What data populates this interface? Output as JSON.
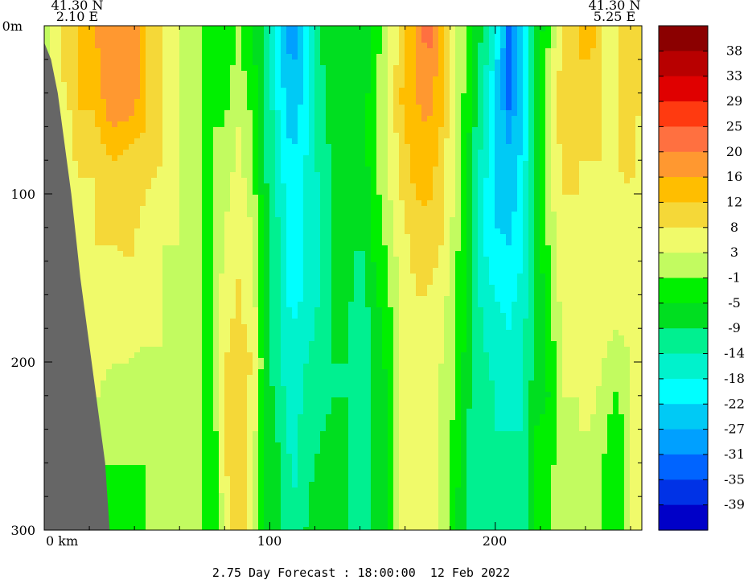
{
  "chart_data": {
    "type": "heatmap",
    "title": "",
    "corner_left": {
      "lat": "41.30 N",
      "lon": "2.10 E"
    },
    "corner_right": {
      "lat": "41.30 N",
      "lon": "5.25 E"
    },
    "footer": "2.75 Day Forecast : 18:00:00  12 Feb 2022",
    "x_axis": {
      "unit": "km",
      "range": [
        0,
        265
      ],
      "ticks": [
        {
          "value": 0,
          "label": "0 km"
        },
        {
          "value": 100,
          "label": "100"
        },
        {
          "value": 200,
          "label": "200"
        }
      ]
    },
    "y_axis": {
      "unit": "m",
      "range": [
        0,
        300
      ],
      "inverted": true,
      "ticks": [
        {
          "value": 0,
          "label": "0m"
        },
        {
          "value": 100,
          "label": "100"
        },
        {
          "value": 200,
          "label": "200"
        },
        {
          "value": 300,
          "label": "300"
        }
      ]
    },
    "colorbar": {
      "labels": [
        "38",
        "33",
        "29",
        "25",
        "20",
        "16",
        "12",
        "8",
        "3",
        "-1",
        "-5",
        "-9",
        "-14",
        "-18",
        "-22",
        "-27",
        "-31",
        "-35",
        "-39"
      ],
      "colors": [
        "#8b0000",
        "#b80000",
        "#e00000",
        "#ff3a10",
        "#ff7040",
        "#ff9830",
        "#ffbe00",
        "#f5d838",
        "#f0fa6a",
        "#c2fb60",
        "#00f000",
        "#00de20",
        "#00f090",
        "#00f2cc",
        "#00ffff",
        "#00caf5",
        "#00a0ff",
        "#0064ff",
        "#0032e6",
        "#0000c8"
      ]
    },
    "columns": [
      {
        "x": 0,
        "profile": [
          [
            0,
            -1
          ],
          [
            300,
            -1
          ]
        ]
      },
      {
        "x": 8,
        "profile": [
          [
            0,
            8
          ],
          [
            30,
            8
          ],
          [
            60,
            3
          ],
          [
            100,
            3
          ],
          [
            300,
            3
          ]
        ]
      },
      {
        "x": 15,
        "profile": [
          [
            0,
            12
          ],
          [
            50,
            12
          ],
          [
            90,
            8
          ],
          [
            300,
            3
          ]
        ]
      },
      {
        "x": 22,
        "profile": [
          [
            0,
            16
          ],
          [
            50,
            12
          ],
          [
            90,
            8
          ],
          [
            150,
            8
          ],
          [
            230,
            3
          ],
          [
            260,
            -1
          ],
          [
            300,
            -1
          ]
        ]
      },
      {
        "x": 30,
        "profile": [
          [
            0,
            20
          ],
          [
            40,
            20
          ],
          [
            60,
            16
          ],
          [
            80,
            12
          ],
          [
            130,
            8
          ],
          [
            200,
            3
          ],
          [
            250,
            -1
          ],
          [
            300,
            -1
          ]
        ]
      },
      {
        "x": 38,
        "profile": [
          [
            0,
            20
          ],
          [
            40,
            20
          ],
          [
            70,
            12
          ],
          [
            140,
            8
          ],
          [
            200,
            3
          ],
          [
            260,
            -1
          ],
          [
            300,
            -1
          ]
        ]
      },
      {
        "x": 45,
        "profile": [
          [
            0,
            12
          ],
          [
            60,
            12
          ],
          [
            100,
            8
          ],
          [
            190,
            3
          ],
          [
            230,
            -1
          ],
          [
            300,
            -1
          ]
        ]
      },
      {
        "x": 52,
        "profile": [
          [
            0,
            8
          ],
          [
            80,
            8
          ],
          [
            130,
            3
          ],
          [
            200,
            3
          ],
          [
            300,
            -1
          ]
        ]
      },
      {
        "x": 60,
        "profile": [
          [
            0,
            3
          ],
          [
            110,
            3
          ],
          [
            250,
            3
          ],
          [
            300,
            -1
          ]
        ]
      },
      {
        "x": 66,
        "profile": [
          [
            0,
            3
          ],
          [
            300,
            3
          ]
        ]
      },
      {
        "x": 70,
        "profile": [
          [
            0,
            -1
          ],
          [
            100,
            -1
          ],
          [
            250,
            -1
          ],
          [
            300,
            -1
          ]
        ]
      },
      {
        "x": 75,
        "profile": [
          [
            0,
            -1
          ],
          [
            40,
            -1
          ],
          [
            120,
            -1
          ],
          [
            300,
            -5
          ]
        ]
      },
      {
        "x": 80,
        "profile": [
          [
            0,
            -5
          ],
          [
            60,
            -1
          ],
          [
            120,
            3
          ],
          [
            200,
            8
          ],
          [
            260,
            8
          ],
          [
            300,
            3
          ]
        ]
      },
      {
        "x": 86,
        "profile": [
          [
            0,
            -1
          ],
          [
            60,
            3
          ],
          [
            150,
            8
          ],
          [
            240,
            12
          ],
          [
            300,
            12
          ]
        ]
      },
      {
        "x": 92,
        "profile": [
          [
            0,
            -5
          ],
          [
            60,
            -1
          ],
          [
            120,
            3
          ],
          [
            200,
            8
          ],
          [
            300,
            3
          ]
        ]
      },
      {
        "x": 98,
        "profile": [
          [
            0,
            -9
          ],
          [
            80,
            -9
          ],
          [
            160,
            -5
          ],
          [
            240,
            -5
          ],
          [
            300,
            -5
          ]
        ]
      },
      {
        "x": 104,
        "profile": [
          [
            0,
            -22
          ],
          [
            60,
            -18
          ],
          [
            120,
            -14
          ],
          [
            200,
            -14
          ],
          [
            250,
            -9
          ],
          [
            300,
            -9
          ]
        ]
      },
      {
        "x": 110,
        "profile": [
          [
            0,
            -31
          ],
          [
            30,
            -27
          ],
          [
            80,
            -22
          ],
          [
            140,
            -22
          ],
          [
            180,
            -18
          ],
          [
            300,
            -14
          ]
        ]
      },
      {
        "x": 116,
        "profile": [
          [
            0,
            -22
          ],
          [
            80,
            -18
          ],
          [
            150,
            -18
          ],
          [
            200,
            -14
          ],
          [
            300,
            -9
          ]
        ]
      },
      {
        "x": 122,
        "profile": [
          [
            0,
            -9
          ],
          [
            100,
            -14
          ],
          [
            160,
            -14
          ],
          [
            250,
            -9
          ],
          [
            300,
            -5
          ]
        ]
      },
      {
        "x": 128,
        "profile": [
          [
            0,
            -5
          ],
          [
            120,
            -9
          ],
          [
            220,
            -9
          ],
          [
            300,
            -5
          ]
        ]
      },
      {
        "x": 134,
        "profile": [
          [
            0,
            -5
          ],
          [
            100,
            -5
          ],
          [
            200,
            -9
          ],
          [
            300,
            -9
          ]
        ]
      },
      {
        "x": 140,
        "profile": [
          [
            0,
            -9
          ],
          [
            120,
            -9
          ],
          [
            200,
            -14
          ],
          [
            300,
            -14
          ]
        ]
      },
      {
        "x": 146,
        "profile": [
          [
            0,
            -5
          ],
          [
            60,
            -1
          ],
          [
            140,
            -5
          ],
          [
            200,
            -9
          ],
          [
            300,
            -9
          ]
        ]
      },
      {
        "x": 152,
        "profile": [
          [
            0,
            3
          ],
          [
            80,
            3
          ],
          [
            140,
            -1
          ],
          [
            220,
            -5
          ],
          [
            300,
            -5
          ]
        ]
      },
      {
        "x": 158,
        "profile": [
          [
            0,
            8
          ],
          [
            40,
            12
          ],
          [
            100,
            8
          ],
          [
            160,
            3
          ],
          [
            230,
            3
          ],
          [
            300,
            3
          ]
        ]
      },
      {
        "x": 164,
        "profile": [
          [
            0,
            16
          ],
          [
            40,
            16
          ],
          [
            100,
            12
          ],
          [
            150,
            8
          ],
          [
            220,
            8
          ],
          [
            300,
            3
          ]
        ]
      },
      {
        "x": 170,
        "profile": [
          [
            0,
            25
          ],
          [
            15,
            20
          ],
          [
            60,
            16
          ],
          [
            110,
            12
          ],
          [
            160,
            8
          ],
          [
            300,
            3
          ]
        ]
      },
      {
        "x": 176,
        "profile": [
          [
            0,
            16
          ],
          [
            60,
            12
          ],
          [
            130,
            8
          ],
          [
            200,
            3
          ],
          [
            300,
            3
          ]
        ]
      },
      {
        "x": 182,
        "profile": [
          [
            0,
            3
          ],
          [
            100,
            3
          ],
          [
            150,
            -1
          ],
          [
            220,
            -1
          ],
          [
            300,
            -5
          ]
        ]
      },
      {
        "x": 188,
        "profile": [
          [
            0,
            -1
          ],
          [
            80,
            -5
          ],
          [
            160,
            -5
          ],
          [
            230,
            -9
          ],
          [
            300,
            -9
          ]
        ]
      },
      {
        "x": 194,
        "profile": [
          [
            0,
            -9
          ],
          [
            60,
            -14
          ],
          [
            120,
            -18
          ],
          [
            180,
            -14
          ],
          [
            260,
            -9
          ],
          [
            300,
            -9
          ]
        ]
      },
      {
        "x": 200,
        "profile": [
          [
            0,
            -18
          ],
          [
            50,
            -22
          ],
          [
            120,
            -22
          ],
          [
            160,
            -18
          ],
          [
            220,
            -14
          ],
          [
            300,
            -14
          ]
        ]
      },
      {
        "x": 206,
        "profile": [
          [
            0,
            -31
          ],
          [
            30,
            -35
          ],
          [
            70,
            -27
          ],
          [
            130,
            -22
          ],
          [
            180,
            -18
          ],
          [
            240,
            -14
          ],
          [
            300,
            -9
          ]
        ]
      },
      {
        "x": 212,
        "profile": [
          [
            0,
            -22
          ],
          [
            60,
            -22
          ],
          [
            140,
            -18
          ],
          [
            200,
            -14
          ],
          [
            300,
            -14
          ]
        ]
      },
      {
        "x": 218,
        "profile": [
          [
            0,
            -9
          ],
          [
            80,
            -9
          ],
          [
            160,
            -9
          ],
          [
            240,
            -5
          ],
          [
            300,
            -5
          ]
        ]
      },
      {
        "x": 224,
        "profile": [
          [
            0,
            -1
          ],
          [
            60,
            3
          ],
          [
            150,
            -1
          ],
          [
            220,
            -5
          ],
          [
            300,
            -1
          ]
        ]
      },
      {
        "x": 230,
        "profile": [
          [
            0,
            8
          ],
          [
            40,
            12
          ],
          [
            100,
            8
          ],
          [
            200,
            3
          ],
          [
            300,
            3
          ]
        ]
      },
      {
        "x": 236,
        "profile": [
          [
            0,
            12
          ],
          [
            40,
            12
          ],
          [
            80,
            8
          ],
          [
            150,
            8
          ],
          [
            220,
            3
          ],
          [
            300,
            3
          ]
        ]
      },
      {
        "x": 242,
        "profile": [
          [
            0,
            16
          ],
          [
            20,
            12
          ],
          [
            80,
            8
          ],
          [
            160,
            8
          ],
          [
            240,
            3
          ],
          [
            300,
            3
          ]
        ]
      },
      {
        "x": 248,
        "profile": [
          [
            0,
            8
          ],
          [
            100,
            8
          ],
          [
            200,
            3
          ],
          [
            260,
            -1
          ],
          [
            300,
            -1
          ]
        ]
      },
      {
        "x": 254,
        "profile": [
          [
            0,
            8
          ],
          [
            80,
            8
          ],
          [
            180,
            3
          ],
          [
            250,
            -5
          ],
          [
            300,
            -5
          ]
        ]
      },
      {
        "x": 260,
        "profile": [
          [
            0,
            12
          ],
          [
            100,
            8
          ],
          [
            200,
            3
          ],
          [
            300,
            3
          ]
        ]
      },
      {
        "x": 265,
        "profile": [
          [
            0,
            8
          ],
          [
            300,
            3
          ]
        ]
      }
    ],
    "land_boundary": [
      [
        0,
        10
      ],
      [
        3,
        20
      ],
      [
        6,
        40
      ],
      [
        8,
        60
      ],
      [
        10,
        80
      ],
      [
        12,
        100
      ],
      [
        14,
        125
      ],
      [
        16,
        150
      ],
      [
        18,
        170
      ],
      [
        21,
        200
      ],
      [
        24,
        230
      ],
      [
        27,
        260
      ],
      [
        28,
        280
      ],
      [
        29,
        300
      ]
    ]
  }
}
